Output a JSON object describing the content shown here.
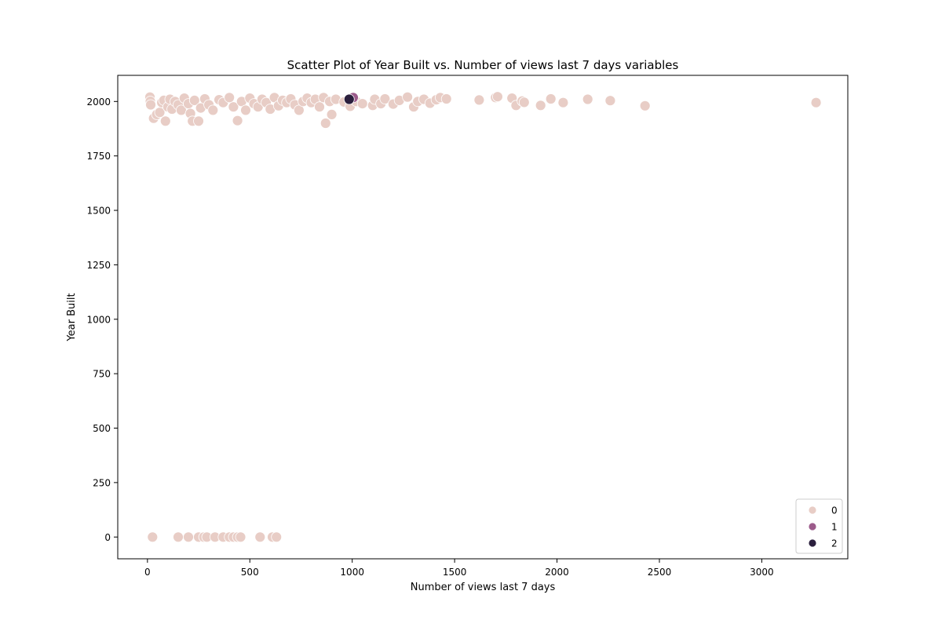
{
  "chart_data": {
    "type": "scatter",
    "title": "Scatter Plot of Year Built vs. Number of views last 7 days variables",
    "xlabel": "Number of views last 7 days",
    "ylabel": "Year Built",
    "xlim": [
      -145,
      3420
    ],
    "ylim": [
      -100,
      2120
    ],
    "x_ticks": [
      0,
      500,
      1000,
      1500,
      2000,
      2500,
      3000
    ],
    "y_ticks": [
      0,
      250,
      500,
      750,
      1000,
      1250,
      1500,
      1750,
      2000
    ],
    "grid": false,
    "legend_position": "bottom-right",
    "colors": {
      "0": "#e8cdc6",
      "1": "#9c5b8b",
      "2": "#2b1f3d"
    },
    "series": [
      {
        "name": "0",
        "points": [
          [
            12,
            2020
          ],
          [
            14,
            2001
          ],
          [
            16,
            1985
          ],
          [
            30,
            1923
          ],
          [
            45,
            1940
          ],
          [
            60,
            1950
          ],
          [
            70,
            1995
          ],
          [
            80,
            2005
          ],
          [
            88,
            1910
          ],
          [
            100,
            1975
          ],
          [
            110,
            2010
          ],
          [
            120,
            1965
          ],
          [
            135,
            2000
          ],
          [
            150,
            1985
          ],
          [
            165,
            1960
          ],
          [
            180,
            2015
          ],
          [
            200,
            1990
          ],
          [
            210,
            1945
          ],
          [
            220,
            1910
          ],
          [
            230,
            2005
          ],
          [
            250,
            1910
          ],
          [
            260,
            1970
          ],
          [
            280,
            2012
          ],
          [
            300,
            1985
          ],
          [
            320,
            1960
          ],
          [
            350,
            2008
          ],
          [
            370,
            1995
          ],
          [
            400,
            2018
          ],
          [
            420,
            1975
          ],
          [
            440,
            1912
          ],
          [
            460,
            2000
          ],
          [
            480,
            1960
          ],
          [
            500,
            2015
          ],
          [
            520,
            1990
          ],
          [
            540,
            1975
          ],
          [
            560,
            2010
          ],
          [
            580,
            1995
          ],
          [
            600,
            1965
          ],
          [
            620,
            2018
          ],
          [
            640,
            1980
          ],
          [
            660,
            2005
          ],
          [
            680,
            1995
          ],
          [
            700,
            2012
          ],
          [
            720,
            1985
          ],
          [
            740,
            1960
          ],
          [
            760,
            2000
          ],
          [
            780,
            2015
          ],
          [
            800,
            1995
          ],
          [
            820,
            2010
          ],
          [
            840,
            1975
          ],
          [
            860,
            2018
          ],
          [
            870,
            1900
          ],
          [
            890,
            2000
          ],
          [
            900,
            1940
          ],
          [
            920,
            2010
          ],
          [
            960,
            1998
          ],
          [
            990,
            1978
          ],
          [
            1020,
            2000
          ],
          [
            1050,
            1990
          ],
          [
            1100,
            1982
          ],
          [
            1110,
            2010
          ],
          [
            1140,
            1990
          ],
          [
            1160,
            2012
          ],
          [
            1200,
            1988
          ],
          [
            1230,
            2005
          ],
          [
            1270,
            2020
          ],
          [
            1300,
            1975
          ],
          [
            1320,
            2000
          ],
          [
            1350,
            2010
          ],
          [
            1380,
            1992
          ],
          [
            1410,
            2008
          ],
          [
            1430,
            2018
          ],
          [
            1460,
            2012
          ],
          [
            1620,
            2007
          ],
          [
            1700,
            2018
          ],
          [
            1710,
            2022
          ],
          [
            1780,
            2015
          ],
          [
            1800,
            1982
          ],
          [
            1830,
            2002
          ],
          [
            1840,
            1996
          ],
          [
            1920,
            1982
          ],
          [
            1970,
            2012
          ],
          [
            2030,
            1995
          ],
          [
            2150,
            2010
          ],
          [
            2260,
            2004
          ],
          [
            2430,
            1980
          ],
          [
            3265,
            1995
          ],
          [
            25,
            0
          ],
          [
            150,
            0
          ],
          [
            200,
            0
          ],
          [
            250,
            0
          ],
          [
            275,
            0
          ],
          [
            290,
            0
          ],
          [
            330,
            0
          ],
          [
            370,
            0
          ],
          [
            400,
            0
          ],
          [
            420,
            0
          ],
          [
            440,
            0
          ],
          [
            455,
            0
          ],
          [
            550,
            0
          ],
          [
            610,
            0
          ],
          [
            630,
            0
          ]
        ]
      },
      {
        "name": "1",
        "points": [
          [
            1005,
            2018
          ]
        ]
      },
      {
        "name": "2",
        "points": [
          [
            985,
            2010
          ]
        ]
      }
    ]
  }
}
